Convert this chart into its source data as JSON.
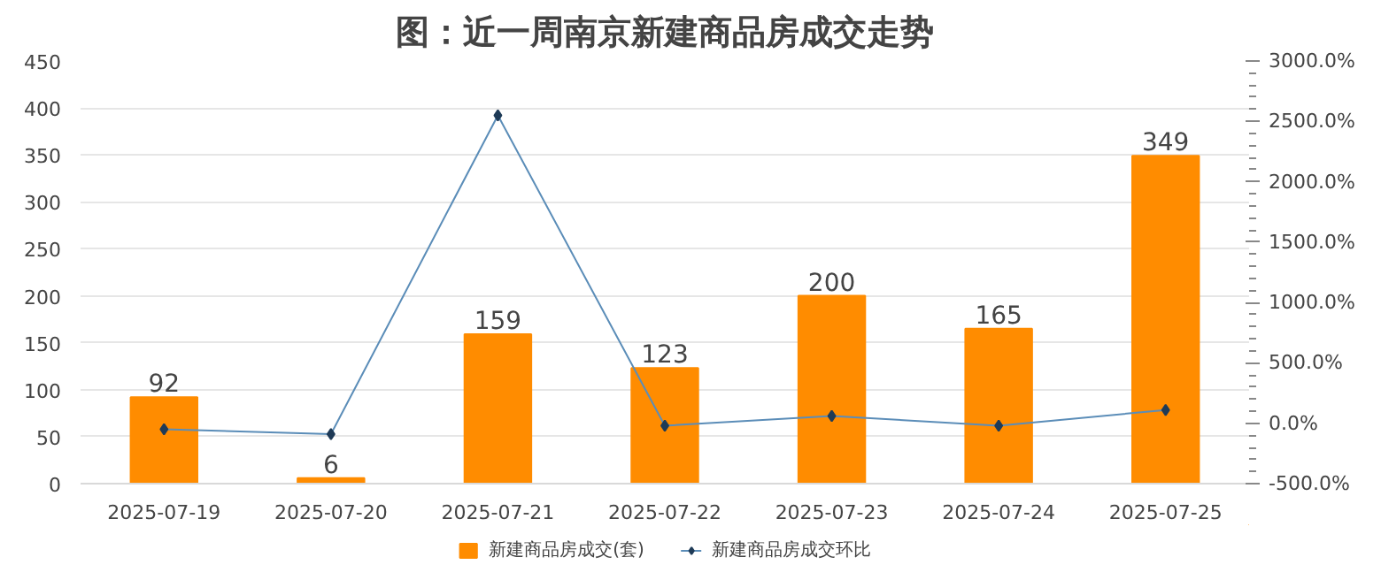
{
  "chart_data": {
    "type": "bar",
    "title": "图：近一周南京新建商品房成交走势",
    "categories": [
      "2025-07-19",
      "2025-07-20",
      "2025-07-21",
      "2025-07-22",
      "2025-07-23",
      "2025-07-24",
      "2025-07-25"
    ],
    "series": [
      {
        "name": "新建商品房成交(套)",
        "color": "#ff8c00",
        "values": [
          92,
          6,
          159,
          123,
          200,
          165,
          349
        ],
        "value_labels": [
          "92",
          "6",
          "159",
          "123",
          "200",
          "165",
          "349"
        ]
      },
      {
        "name": "新建商品房成交环比",
        "type": "line",
        "axis": "y2",
        "color": "#5b8db8",
        "marker": "diamond",
        "values": [
          -50,
          -90,
          2550,
          -20,
          60,
          -20,
          110
        ]
      }
    ],
    "ylim": [
      0,
      450
    ],
    "yticks": [
      0,
      50,
      100,
      150,
      200,
      250,
      300,
      350,
      400,
      450
    ],
    "y2lim": [
      -500,
      3000
    ],
    "y2ticks": [
      {
        "value": -500,
        "label": "-500.0%"
      },
      {
        "value": 0,
        "label": "0.0%"
      },
      {
        "value": 500,
        "label": "500.0%"
      },
      {
        "value": 1000,
        "label": "1000.0%"
      },
      {
        "value": 1500,
        "label": "1500.0%"
      },
      {
        "value": 2000,
        "label": "2000.0%"
      },
      {
        "value": 2500,
        "label": "2500.0%"
      },
      {
        "value": 3000,
        "label": "3000.0%"
      }
    ],
    "grid": "y",
    "legend": "bottom"
  }
}
